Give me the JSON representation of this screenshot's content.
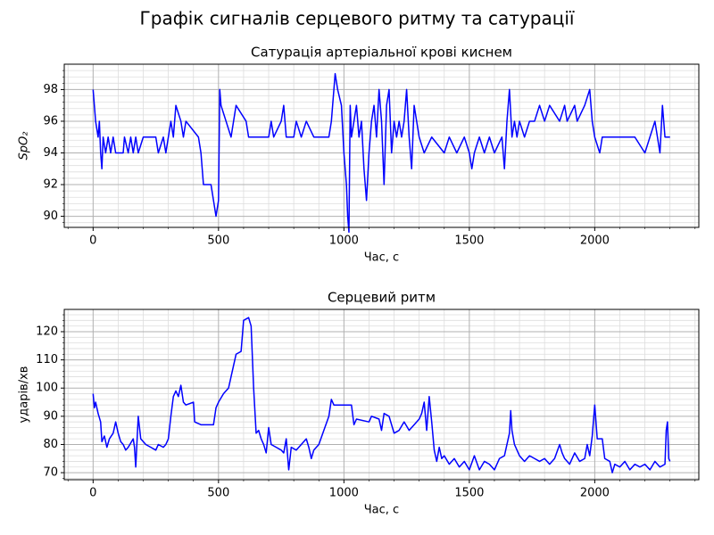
{
  "title": "Графік сигналів серцевого ритму та сатурації",
  "chart_data": [
    {
      "type": "line",
      "title": "Сатурація артеріальної крові киснем",
      "xlabel": "Час, с",
      "ylabel": "SpO₂",
      "xlim": [
        -115,
        2415
      ],
      "ylim": [
        89.3,
        99.6
      ],
      "xticks": [
        0,
        500,
        1000,
        1500,
        2000
      ],
      "yticks": [
        90,
        92,
        94,
        96,
        98
      ],
      "xminorticks": [
        -100,
        100,
        200,
        300,
        400,
        600,
        700,
        800,
        900,
        1100,
        1200,
        1300,
        1400,
        1600,
        1700,
        1800,
        1900,
        2100,
        2200,
        2300,
        2400
      ],
      "yminorticks": [
        89.6,
        90.4,
        90.8,
        91.2,
        91.6,
        92.4,
        92.8,
        93.2,
        93.6,
        94.4,
        94.8,
        95.2,
        95.6,
        96.4,
        96.8,
        97.2,
        97.6,
        98.4,
        98.8,
        99.2
      ],
      "grid": true,
      "minor_grid": true,
      "color": "#0000ff",
      "x": [
        0,
        5,
        10,
        20,
        25,
        30,
        35,
        40,
        50,
        60,
        70,
        80,
        90,
        120,
        125,
        140,
        150,
        160,
        170,
        180,
        200,
        250,
        260,
        280,
        290,
        300,
        310,
        320,
        330,
        350,
        360,
        370,
        420,
        430,
        440,
        470,
        480,
        490,
        500,
        505,
        510,
        530,
        550,
        560,
        570,
        610,
        620,
        650,
        700,
        710,
        720,
        750,
        760,
        770,
        800,
        810,
        830,
        850,
        880,
        940,
        950,
        960,
        965,
        975,
        990,
        1000,
        1010,
        1015,
        1020,
        1025,
        1030,
        1040,
        1050,
        1060,
        1070,
        1080,
        1090,
        1100,
        1110,
        1120,
        1130,
        1140,
        1150,
        1160,
        1170,
        1180,
        1190,
        1200,
        1210,
        1220,
        1230,
        1240,
        1250,
        1260,
        1270,
        1280,
        1290,
        1300,
        1320,
        1350,
        1400,
        1420,
        1450,
        1480,
        1500,
        1510,
        1520,
        1540,
        1560,
        1580,
        1600,
        1630,
        1640,
        1650,
        1660,
        1670,
        1680,
        1690,
        1700,
        1720,
        1740,
        1760,
        1780,
        1800,
        1820,
        1860,
        1880,
        1890,
        1920,
        1930,
        1960,
        1980,
        1990,
        2000,
        2020,
        2030,
        2100,
        2130,
        2160,
        2200,
        2220,
        2240,
        2250,
        2260,
        2270,
        2280,
        2300
      ],
      "values": [
        98,
        97,
        96,
        95,
        96,
        94,
        93,
        95,
        94,
        95,
        94,
        95,
        94,
        94,
        95,
        94,
        95,
        94,
        95,
        94,
        95,
        95,
        94,
        95,
        94,
        95,
        96,
        95,
        97,
        96,
        95,
        96,
        95,
        94,
        92,
        92,
        91,
        90,
        91,
        98,
        97,
        96,
        95,
        96,
        97,
        96,
        95,
        95,
        95,
        96,
        95,
        96,
        97,
        95,
        95,
        96,
        95,
        96,
        95,
        95,
        96,
        98,
        99,
        98,
        97,
        94,
        92,
        90,
        89,
        97,
        95,
        96,
        97,
        95,
        96,
        93,
        91,
        94,
        96,
        97,
        95,
        98,
        96,
        92,
        97,
        98,
        94,
        96,
        95,
        96,
        95,
        96,
        98,
        95,
        93,
        97,
        96,
        95,
        94,
        95,
        94,
        95,
        94,
        95,
        94,
        93,
        94,
        95,
        94,
        95,
        94,
        95,
        93,
        96,
        98,
        95,
        96,
        95,
        96,
        95,
        96,
        96,
        97,
        96,
        97,
        96,
        97,
        96,
        97,
        96,
        97,
        98,
        96,
        95,
        94,
        95,
        95,
        95,
        95,
        94,
        95,
        96,
        95,
        94,
        97,
        95,
        95
      ]
    },
    {
      "type": "line",
      "title": "Серцевий ритм",
      "xlabel": "Час, с",
      "ylabel": "ударів/хв",
      "xlim": [
        -115,
        2415
      ],
      "ylim": [
        67.5,
        127.9
      ],
      "xticks": [
        0,
        500,
        1000,
        1500,
        2000
      ],
      "yticks": [
        70,
        80,
        90,
        100,
        110,
        120
      ],
      "xminorticks": [
        -100,
        100,
        200,
        300,
        400,
        600,
        700,
        800,
        900,
        1100,
        1200,
        1300,
        1400,
        1600,
        1700,
        1800,
        1900,
        2100,
        2200,
        2300,
        2400
      ],
      "yminorticks": [
        68,
        72,
        74,
        76,
        78,
        82,
        84,
        86,
        88,
        92,
        94,
        96,
        98,
        102,
        104,
        106,
        108,
        112,
        114,
        116,
        118,
        122,
        124,
        126
      ],
      "grid": true,
      "minor_grid": true,
      "color": "#0000ff",
      "x": [
        0,
        5,
        10,
        20,
        30,
        35,
        45,
        55,
        65,
        80,
        90,
        100,
        110,
        120,
        130,
        140,
        160,
        165,
        170,
        180,
        190,
        210,
        230,
        250,
        260,
        280,
        290,
        300,
        310,
        320,
        330,
        340,
        350,
        360,
        370,
        400,
        405,
        430,
        450,
        480,
        490,
        500,
        520,
        540,
        550,
        560,
        570,
        590,
        600,
        620,
        630,
        640,
        650,
        660,
        670,
        680,
        690,
        700,
        710,
        730,
        750,
        760,
        770,
        780,
        790,
        810,
        830,
        850,
        860,
        870,
        880,
        900,
        920,
        940,
        950,
        960,
        1000,
        1030,
        1040,
        1050,
        1100,
        1110,
        1140,
        1150,
        1160,
        1180,
        1200,
        1220,
        1240,
        1260,
        1280,
        1300,
        1310,
        1320,
        1330,
        1340,
        1350,
        1360,
        1370,
        1380,
        1390,
        1400,
        1420,
        1440,
        1460,
        1480,
        1500,
        1520,
        1540,
        1560,
        1580,
        1600,
        1620,
        1640,
        1660,
        1665,
        1670,
        1680,
        1700,
        1720,
        1740,
        1760,
        1780,
        1800,
        1820,
        1840,
        1860,
        1870,
        1880,
        1900,
        1920,
        1940,
        1960,
        1970,
        1980,
        1990,
        2000,
        2010,
        2030,
        2040,
        2060,
        2070,
        2080,
        2100,
        2120,
        2140,
        2160,
        2180,
        2200,
        2220,
        2240,
        2260,
        2280,
        2285,
        2290,
        2295,
        2300
      ],
      "values": [
        98,
        93,
        95,
        91,
        88,
        81,
        83,
        79,
        82,
        84,
        88,
        84,
        81,
        80,
        78,
        79,
        82,
        79,
        72,
        90,
        82,
        80,
        79,
        78,
        80,
        79,
        80,
        82,
        90,
        97,
        99,
        97,
        101,
        95,
        94,
        95,
        88,
        87,
        87,
        87,
        93,
        95,
        98,
        100,
        104,
        108,
        112,
        113,
        124,
        125,
        122,
        100,
        84,
        85,
        82,
        80,
        77,
        86,
        80,
        79,
        78,
        77,
        82,
        71,
        79,
        78,
        80,
        82,
        79,
        75,
        78,
        80,
        85,
        90,
        96,
        94,
        94,
        94,
        87,
        89,
        88,
        90,
        89,
        85,
        91,
        90,
        84,
        85,
        88,
        85,
        87,
        89,
        91,
        95,
        85,
        97,
        88,
        78,
        74,
        79,
        75,
        76,
        73,
        75,
        72,
        74,
        71,
        76,
        71,
        74,
        73,
        71,
        75,
        76,
        84,
        92,
        85,
        80,
        76,
        74,
        76,
        75,
        74,
        75,
        73,
        75,
        80,
        77,
        75,
        73,
        77,
        74,
        75,
        80,
        76,
        83,
        94,
        82,
        82,
        75,
        74,
        70,
        73,
        72,
        74,
        71,
        73,
        72,
        73,
        71,
        74,
        72,
        73,
        85,
        88,
        75,
        74
      ]
    }
  ]
}
